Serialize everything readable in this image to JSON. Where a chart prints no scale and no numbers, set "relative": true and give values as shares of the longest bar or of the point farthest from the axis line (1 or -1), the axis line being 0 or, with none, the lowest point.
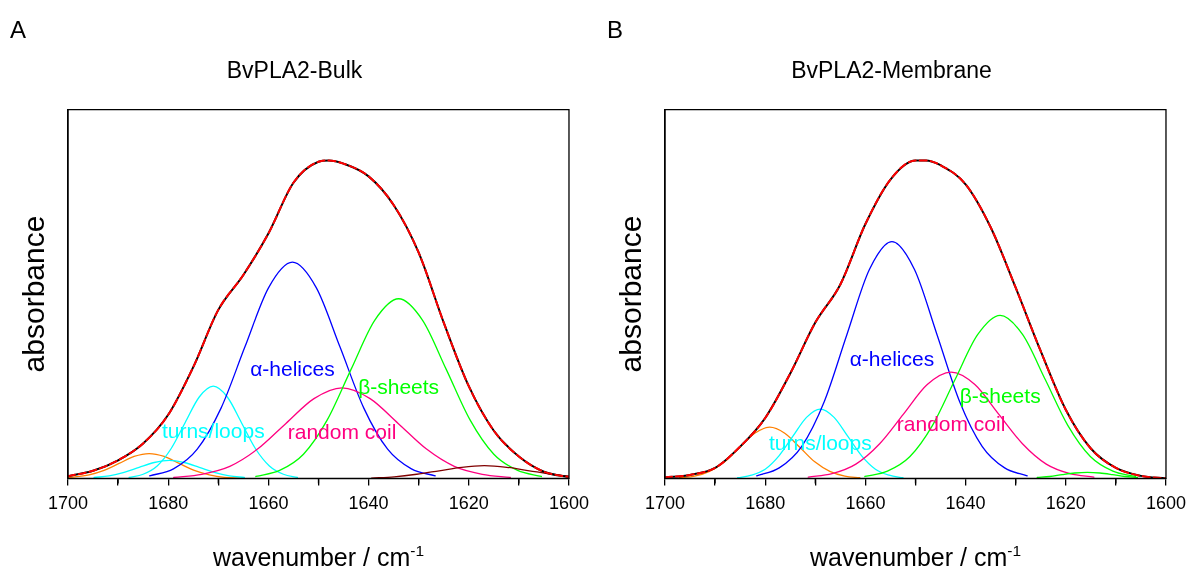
{
  "chart_data": [
    {
      "type": "line",
      "title": "BvPLA2-Bulk",
      "xlabel": "wavenumber / cm$^{-1}$",
      "ylabel": "absorbance",
      "relative": true,
      "annotations": [
        "A"
      ],
      "xlim": [
        1700,
        1600
      ],
      "xticks": [
        1700,
        {
          "value": 1690,
          "label": null
        },
        1680,
        {
          "value": 1670,
          "label": null
        },
        1660,
        {
          "value": 1650,
          "label": null
        },
        1640,
        {
          "value": 1630,
          "label": null
        },
        1620,
        {
          "value": 1610,
          "label": null
        },
        1600
      ],
      "series": [
        {
          "color": "#ff8000",
          "x": [
            1700,
            1695.8,
            1692.8,
            1689.8,
            1686.8,
            1683.8,
            1680.8,
            1677.8,
            1674.8,
            1671.8,
            1668.8,
            1665.8
          ],
          "values": [
            0.002,
            0.011,
            0.025,
            0.047,
            0.069,
            0.078,
            0.069,
            0.047,
            0.025,
            0.011,
            0.003,
            0.001
          ]
        },
        {
          "color": "#00ffff",
          "x": [
            1694.8,
            1691.8,
            1688.8,
            1685.8,
            1682.8,
            1679.8,
            1676.8,
            1673.8,
            1670.8,
            1667.8,
            1664.8
          ],
          "values": [
            0.003,
            0.008,
            0.019,
            0.035,
            0.05,
            0.057,
            0.05,
            0.035,
            0.019,
            0.008,
            0.003
          ]
        },
        {
          "name": "turns/loops",
          "color": "#00ffff",
          "x": [
            1687.8,
            1685,
            1682.2,
            1679.4,
            1676.6,
            1673.8,
            1671,
            1668.2,
            1665.4,
            1662.6,
            1659.8,
            1657,
            1654.2
          ],
          "values": [
            0.003,
            0.013,
            0.039,
            0.094,
            0.176,
            0.256,
            0.29,
            0.256,
            0.176,
            0.094,
            0.039,
            0.013,
            0.003
          ]
        },
        {
          "name": "α-helices",
          "color": "#0000ff",
          "x": [
            1683.7,
            1678.95,
            1674.2,
            1669.45,
            1664.7,
            1659.95,
            1655.2,
            1650.45,
            1645.7,
            1640.95,
            1636.2,
            1631.45,
            1626.7
          ],
          "values": [
            0.008,
            0.03,
            0.092,
            0.221,
            0.413,
            0.6,
            0.68,
            0.6,
            0.413,
            0.221,
            0.092,
            0.03,
            0.008
          ]
        },
        {
          "name": "random coil",
          "color": "#ff0080",
          "x": [
            1678.9,
            1673.3,
            1667.7,
            1662.1,
            1656.5,
            1650.9,
            1645.3,
            1639.7,
            1634.1,
            1628.5,
            1622.9,
            1617.3,
            1611.7
          ],
          "values": [
            0.003,
            0.013,
            0.038,
            0.093,
            0.173,
            0.251,
            0.285,
            0.251,
            0.173,
            0.093,
            0.038,
            0.013,
            0.003
          ]
        },
        {
          "name": "β-sheets",
          "color": "#00ff00",
          "x": [
            1662.5,
            1657.75,
            1653,
            1648.25,
            1643.5,
            1638.75,
            1634,
            1629.25,
            1624.5,
            1619.75,
            1615,
            1610.25,
            1605.5
          ],
          "values": [
            0.006,
            0.025,
            0.076,
            0.184,
            0.343,
            0.498,
            0.565,
            0.498,
            0.343,
            0.184,
            0.076,
            0.025,
            0.006
          ]
        },
        {
          "color": "#800000",
          "x": [
            1639.4,
            1634.9,
            1630.4,
            1625.9,
            1621.4,
            1616.9,
            1612.4,
            1607.9,
            1603.4,
            1600
          ],
          "values": [
            0.001,
            0.005,
            0.013,
            0.024,
            0.035,
            0.04,
            0.035,
            0.024,
            0.013,
            0.007
          ]
        },
        {
          "color": "#000000",
          "x": [
            1700,
            1695,
            1690,
            1685,
            1680,
            1675,
            1670,
            1665,
            1660,
            1655,
            1650,
            1648,
            1645,
            1640,
            1635,
            1630,
            1625,
            1620,
            1615,
            1610,
            1605,
            1600
          ],
          "values": [
            0.007,
            0.024,
            0.057,
            0.11,
            0.2,
            0.35,
            0.53,
            0.64,
            0.77,
            0.93,
            0.996,
            1,
            0.99,
            0.95,
            0.86,
            0.71,
            0.49,
            0.29,
            0.15,
            0.069,
            0.021,
            0.004
          ]
        },
        {
          "color": "#ff0000",
          "line_style": "dashed",
          "x": [
            1700,
            1695,
            1690,
            1685,
            1680,
            1675,
            1670,
            1665,
            1660,
            1655,
            1650,
            1648,
            1645,
            1640,
            1635,
            1630,
            1625,
            1620,
            1615,
            1610,
            1605,
            1600
          ],
          "values": [
            0.007,
            0.024,
            0.057,
            0.11,
            0.2,
            0.35,
            0.53,
            0.64,
            0.77,
            0.93,
            0.996,
            1,
            0.99,
            0.95,
            0.86,
            0.71,
            0.49,
            0.29,
            0.15,
            0.069,
            0.021,
            0.004
          ]
        }
      ]
    },
    {
      "type": "line",
      "title": "BvPLA2-Membrane",
      "xlabel": "wavenumber / cm$^{-1}$",
      "ylabel": "absorbance",
      "relative": true,
      "annotations": [
        "B"
      ],
      "xlim": [
        1700,
        1600
      ],
      "xticks": [
        1700,
        {
          "value": 1690,
          "label": null
        },
        1680,
        {
          "value": 1670,
          "label": null
        },
        1660,
        {
          "value": 1650,
          "label": null
        },
        1640,
        {
          "value": 1630,
          "label": null
        },
        1620,
        {
          "value": 1610,
          "label": null
        },
        1600
      ],
      "series": [
        {
          "color": "#ff8000",
          "x": [
            1697.1,
            1694.1,
            1691.1,
            1688.1,
            1685.1,
            1682.1,
            1679.1,
            1676.1,
            1673.1,
            1670.1,
            1667.1,
            1664.1,
            1661.1
          ],
          "values": [
            0.002,
            0.007,
            0.022,
            0.052,
            0.098,
            0.142,
            0.161,
            0.142,
            0.098,
            0.052,
            0.022,
            0.007,
            0.002
          ]
        },
        {
          "name": "turns/loops",
          "color": "#00ffff",
          "x": [
            1685.5,
            1682.75,
            1680,
            1677.25,
            1674.5,
            1671.75,
            1669,
            1666.25,
            1663.5,
            1660.75,
            1658,
            1655.25,
            1652.5
          ],
          "values": [
            0.002,
            0.01,
            0.029,
            0.071,
            0.132,
            0.192,
            0.218,
            0.192,
            0.132,
            0.071,
            0.029,
            0.01,
            0.002
          ]
        },
        {
          "name": "α-helices",
          "color": "#0000ff",
          "x": [
            1681.7,
            1677.2,
            1672.7,
            1668.2,
            1663.7,
            1659.2,
            1654.7,
            1650.2,
            1645.7,
            1641.2,
            1636.7,
            1632.2,
            1627.7
          ],
          "values": [
            0.008,
            0.033,
            0.101,
            0.242,
            0.452,
            0.657,
            0.745,
            0.657,
            0.452,
            0.242,
            0.101,
            0.033,
            0.008
          ]
        },
        {
          "name": "random coil",
          "color": "#ff0080",
          "x": [
            1671.4,
            1666.65,
            1661.9,
            1657.15,
            1652.4,
            1647.65,
            1642.9,
            1638.15,
            1633.4,
            1628.65,
            1623.9,
            1619.15,
            1614.4
          ],
          "values": [
            0.004,
            0.015,
            0.045,
            0.109,
            0.202,
            0.295,
            0.334,
            0.295,
            0.202,
            0.109,
            0.045,
            0.015,
            0.004
          ]
        },
        {
          "name": "β-sheets",
          "color": "#00ff00",
          "x": [
            1660.1,
            1655.6,
            1651.1,
            1646.6,
            1642.1,
            1637.6,
            1633.1,
            1628.6,
            1624.1,
            1619.6,
            1615.1,
            1610.6,
            1606.1
          ],
          "values": [
            0.006,
            0.023,
            0.069,
            0.167,
            0.311,
            0.452,
            0.513,
            0.452,
            0.311,
            0.167,
            0.069,
            0.023,
            0.006
          ]
        },
        {
          "color": "#00ff00",
          "x": [
            1625.7,
            1623.2,
            1620.7,
            1618.2,
            1615.7,
            1613.2,
            1610.7,
            1608.2,
            1605.7
          ],
          "values": [
            0.003,
            0.006,
            0.012,
            0.017,
            0.019,
            0.017,
            0.012,
            0.006,
            0.003
          ]
        },
        {
          "color": "#000000",
          "x": [
            1700,
            1695,
            1690,
            1685,
            1680,
            1675,
            1670,
            1665,
            1660,
            1655,
            1650,
            1648,
            1645,
            1640,
            1635,
            1630,
            1625,
            1620,
            1615,
            1610,
            1605,
            1600
          ],
          "values": [
            0.003,
            0.011,
            0.033,
            0.1,
            0.19,
            0.33,
            0.49,
            0.61,
            0.8,
            0.94,
            1,
            1,
            0.985,
            0.925,
            0.79,
            0.6,
            0.4,
            0.216,
            0.094,
            0.033,
            0.008,
            0
          ]
        },
        {
          "color": "#ff0000",
          "line_style": "dashed",
          "x": [
            1700,
            1695,
            1690,
            1685,
            1680,
            1675,
            1670,
            1665,
            1660,
            1655,
            1650,
            1648,
            1645,
            1640,
            1635,
            1630,
            1625,
            1620,
            1615,
            1610,
            1605,
            1600
          ],
          "values": [
            0.003,
            0.011,
            0.033,
            0.1,
            0.19,
            0.33,
            0.49,
            0.61,
            0.8,
            0.94,
            1,
            1,
            0.985,
            0.925,
            0.79,
            0.6,
            0.4,
            0.216,
            0.094,
            0.033,
            0.008,
            0
          ]
        }
      ]
    }
  ]
}
